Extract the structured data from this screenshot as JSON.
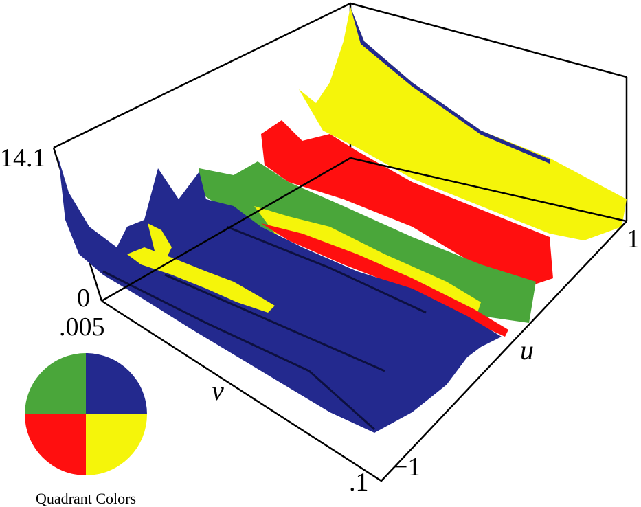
{
  "figure": {
    "z_axis": {
      "max_label": "14.1",
      "min_label": "0"
    },
    "v_axis": {
      "name": "v",
      "start_label": ".005",
      "end_label": ".1"
    },
    "u_axis": {
      "name": "u",
      "start_label": "−1",
      "end_label": "1"
    }
  },
  "legend": {
    "caption": "Quadrant Colors",
    "quadrants": [
      {
        "name": "upper-left",
        "color": "#4aa63a"
      },
      {
        "name": "upper-right",
        "color": "#23298e"
      },
      {
        "name": "lower-left",
        "color": "#ff0f0f"
      },
      {
        "name": "lower-right",
        "color": "#f5f50a"
      }
    ]
  },
  "colors": {
    "blue": "#23298e",
    "green": "#4aa63a",
    "red": "#ff0f0f",
    "yellow": "#f5f50a",
    "shadow": "#0d1040"
  }
}
